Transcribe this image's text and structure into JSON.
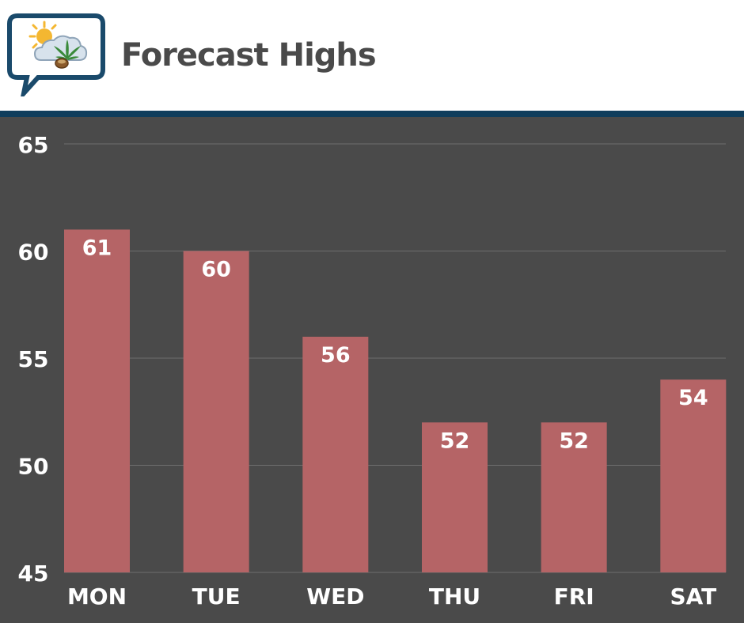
{
  "header": {
    "title": "Forecast Highs"
  },
  "logo": {
    "icon": "weather-cannabis-logo",
    "colors": {
      "bubble": "#1a4a6b",
      "sun": "#f4b731",
      "leaf": "#3a8a3a",
      "cloud": "#d7e2ec"
    }
  },
  "colors": {
    "background": "#4a4a4a",
    "bar": "#b56466",
    "header_rule": "#0f3d5c",
    "gridline": "#6e6e6e",
    "text": "#ffffff",
    "title": "#4a4a4a"
  },
  "chart_data": {
    "type": "bar",
    "title": "Forecast Highs",
    "xlabel": "",
    "ylabel": "",
    "categories": [
      "MON",
      "TUE",
      "WED",
      "THU",
      "FRI",
      "SAT"
    ],
    "series": [
      {
        "values": [
          61,
          60,
          56,
          52,
          52,
          54
        ]
      }
    ],
    "ylim": [
      45,
      65
    ],
    "yticks": [
      45,
      50,
      55,
      60,
      65
    ],
    "data_labels": true,
    "grid": true,
    "legend": "none"
  }
}
